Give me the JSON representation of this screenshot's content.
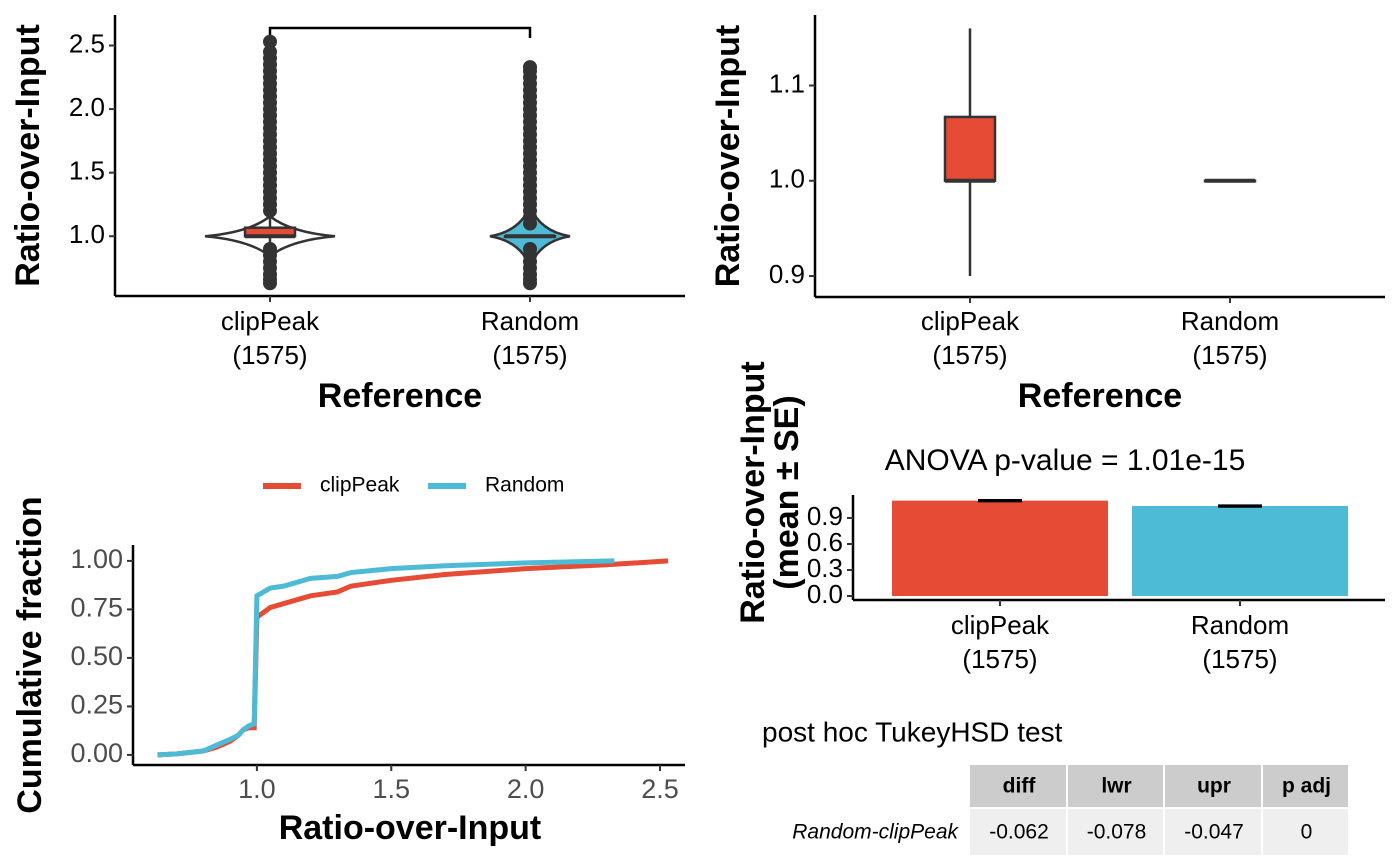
{
  "chart_data": [
    {
      "type": "violin",
      "xlabel": "Reference",
      "ylabel": "Ratio-over-Input",
      "categories": [
        "clipPeak\n(1575)",
        "Random\n(1575)"
      ],
      "colors": [
        "#e64b35",
        "#4dbbd5"
      ],
      "boxes": [
        {
          "whislo": 0.9,
          "q1": 1.0,
          "med": 1.0,
          "q3": 1.067,
          "whishi": 1.16
        },
        {
          "whislo": 1.0,
          "q1": 1.0,
          "med": 1.0,
          "q3": 1.0,
          "whishi": 1.0
        }
      ],
      "outliers": [
        [
          0.63,
          0.66,
          0.7,
          0.75,
          0.8,
          0.85,
          0.9,
          1.2,
          1.25,
          1.3,
          1.35,
          1.4,
          1.45,
          1.5,
          1.55,
          1.6,
          1.65,
          1.7,
          1.75,
          1.8,
          1.85,
          1.9,
          1.95,
          2.0,
          2.05,
          2.1,
          2.15,
          2.2,
          2.25,
          2.3,
          2.35,
          2.4,
          2.45,
          2.53
        ],
        [
          0.63,
          0.66,
          0.7,
          0.75,
          0.8,
          0.85,
          0.9,
          1.1,
          1.15,
          1.2,
          1.25,
          1.3,
          1.35,
          1.4,
          1.45,
          1.5,
          1.55,
          1.6,
          1.65,
          1.7,
          1.75,
          1.8,
          1.85,
          1.9,
          1.95,
          2.0,
          2.05,
          2.1,
          2.15,
          2.2,
          2.25,
          2.3,
          2.33
        ]
      ],
      "ylim": [
        0.53,
        2.74
      ],
      "yticks": [
        {
          "value": 1.0,
          "label": "1.0"
        },
        1.5,
        {
          "value": 2.0,
          "label": "2.0"
        },
        2.5
      ]
    },
    {
      "type": "box",
      "xlabel": "Reference",
      "ylabel": "Ratio-over-Input",
      "categories": [
        "clipPeak\n(1575)",
        "Random\n(1575)"
      ],
      "colors": [
        "#e64b35",
        "#4dbbd5"
      ],
      "boxes": [
        {
          "whislo": 0.9,
          "q1": 1.0,
          "med": 1.0,
          "q3": 1.067,
          "whishi": 1.16
        },
        {
          "whislo": 1.0,
          "q1": 1.0,
          "med": 1.0,
          "q3": 1.0,
          "whishi": 1.0
        }
      ],
      "ylim": [
        0.878,
        1.174
      ],
      "yticks": [
        0.9,
        {
          "value": 1.0,
          "label": "1.0"
        },
        1.1
      ]
    },
    {
      "type": "ecdf",
      "xlabel": "Ratio-over-Input",
      "ylabel": "Cumulative fraction",
      "series": [
        {
          "name": "clipPeak",
          "color": "#e64b35",
          "x": [
            0.63,
            0.7,
            0.8,
            0.85,
            0.9,
            0.93,
            0.95,
            0.97,
            0.99,
            1.0,
            1.01,
            1.05,
            1.1,
            1.15,
            1.2,
            1.3,
            1.35,
            1.5,
            1.7,
            2.0,
            2.3,
            2.53
          ],
          "values": [
            0,
            0.005,
            0.02,
            0.04,
            0.07,
            0.1,
            0.13,
            0.14,
            0.14,
            0.71,
            0.72,
            0.76,
            0.78,
            0.8,
            0.82,
            0.84,
            0.87,
            0.9,
            0.93,
            0.96,
            0.98,
            1.0
          ]
        },
        {
          "name": "Random",
          "color": "#4dbbd5",
          "x": [
            0.63,
            0.7,
            0.8,
            0.85,
            0.9,
            0.93,
            0.95,
            0.97,
            0.99,
            1.0,
            1.05,
            1.1,
            1.15,
            1.2,
            1.3,
            1.35,
            1.5,
            1.7,
            2.0,
            2.33
          ],
          "values": [
            0,
            0.005,
            0.02,
            0.05,
            0.08,
            0.1,
            0.13,
            0.15,
            0.16,
            0.82,
            0.86,
            0.87,
            0.89,
            0.91,
            0.92,
            0.94,
            0.96,
            0.975,
            0.99,
            1.0
          ]
        }
      ],
      "xlim": [
        0.539,
        2.593
      ],
      "xticks": [
        {
          "value": 1.0,
          "label": "1.0"
        },
        1.5,
        {
          "value": 2.0,
          "label": "2.0"
        },
        2.5
      ],
      "ylim": [
        -0.052,
        1.082
      ],
      "yticks": [
        {
          "value": 0,
          "label": "0.00"
        },
        {
          "value": 0.25,
          "label": "0.25"
        },
        {
          "value": 0.5,
          "label": "0.50"
        },
        {
          "value": 0.75,
          "label": "0.75"
        },
        {
          "value": 1,
          "label": "1.00"
        }
      ]
    },
    {
      "type": "bar",
      "title": "ANOVA p-value = 1.01e-15",
      "ylabel": "Ratio-over-Input\n(mean ± SE)",
      "categories": [
        "clipPeak\n(1575)",
        "Random\n(1575)"
      ],
      "colors": [
        "#e64b35",
        "#4dbbd5"
      ],
      "values": [
        1.1,
        1.038
      ],
      "errors": [
        0.005,
        0.005
      ],
      "ylim": [
        -0.046,
        1.165
      ],
      "yticks": [
        {
          "value": 0,
          "label": "0.0"
        },
        0.3,
        0.6,
        0.9
      ]
    }
  ],
  "table": {
    "title": "post hoc TukeyHSD test",
    "columns": [
      "diff",
      "lwr",
      "upr",
      "p adj"
    ],
    "rows": [
      {
        "label": "Random-clipPeak",
        "cells": [
          -0.062,
          -0.078,
          -0.047,
          0
        ]
      }
    ]
  }
}
